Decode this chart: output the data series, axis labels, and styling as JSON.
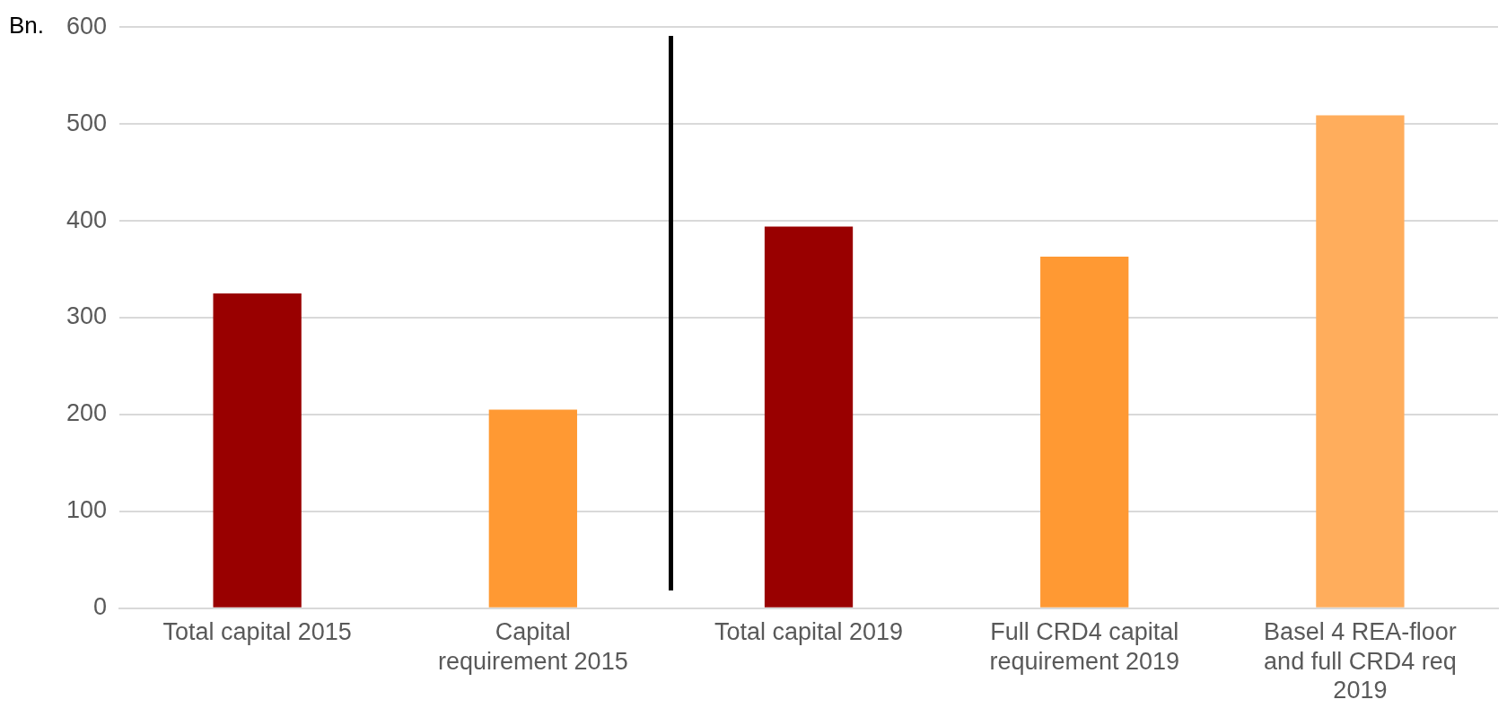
{
  "chart_data": {
    "type": "bar",
    "ylabel": "Bn.",
    "categories": [
      "Total capital 2015",
      "Capital requirement 2015",
      "Total capital 2019",
      "Full CRD4 capital requirement 2019",
      "Basel 4 REA-floor and full CRD4 req 2019"
    ],
    "values": [
      325,
      205,
      394,
      363,
      509
    ],
    "colors": [
      "#990000",
      "#ff9933",
      "#990000",
      "#ff9933",
      "#ffad5c"
    ],
    "ylim": [
      0,
      600
    ],
    "yticks": [
      0,
      100,
      200,
      300,
      400,
      500,
      600
    ],
    "grid": "y"
  }
}
